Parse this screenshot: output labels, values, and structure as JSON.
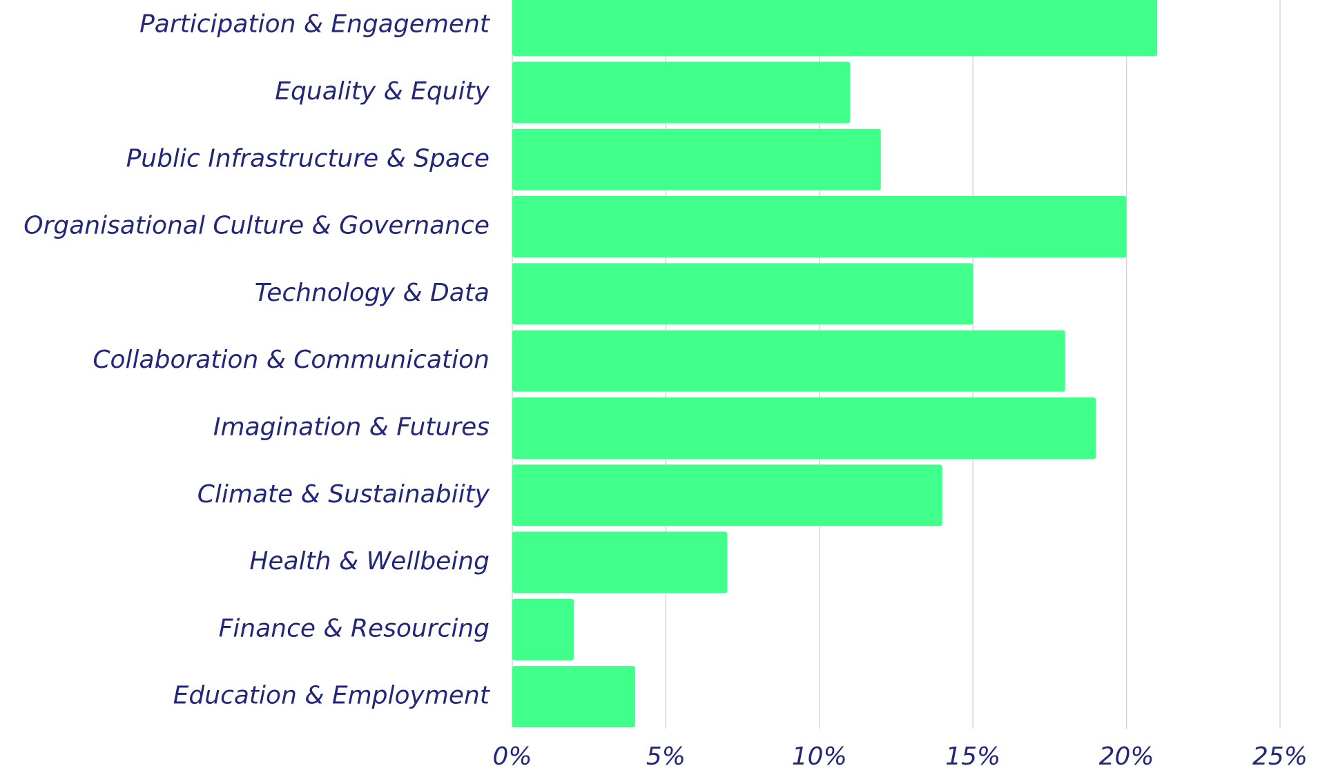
{
  "chart_data": {
    "type": "bar",
    "orientation": "horizontal",
    "categories": [
      "Participation & Engagement",
      "Equality & Equity",
      "Public Infrastructure & Space",
      "Organisational Culture & Governance",
      "Technology & Data",
      "Collaboration & Communication",
      "Imagination & Futures",
      "Climate & Sustainabiity",
      "Health & Wellbeing",
      "Finance & Resourcing",
      "Education & Employment"
    ],
    "values": [
      21,
      11,
      12,
      20,
      15,
      18,
      19,
      14,
      7,
      2,
      4
    ],
    "color": "#40ff8a",
    "xlim": [
      0,
      25
    ],
    "xticks": [
      {
        "value": 0,
        "label": "0%"
      },
      {
        "value": 5,
        "label": "5%"
      },
      {
        "value": 10,
        "label": "10%"
      },
      {
        "value": 15,
        "label": "15%"
      },
      {
        "value": 20,
        "label": "20%"
      },
      {
        "value": 25,
        "label": "25%"
      }
    ],
    "grid": true
  }
}
